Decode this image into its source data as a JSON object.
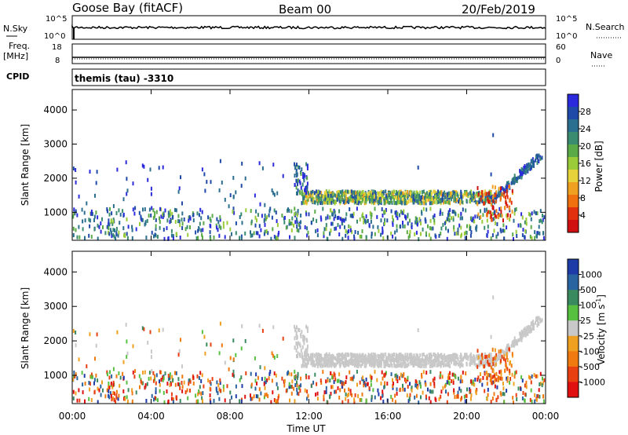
{
  "header": {
    "station": "Goose Bay (fitACF)",
    "beam": "Beam 00",
    "date": "20/Feb/2019"
  },
  "panels": {
    "nsky_label": "N.Sky",
    "nsky_ticks": [
      "10^5",
      "10^0"
    ],
    "nsearch_label": "N.Search",
    "nsearch_ticks": [
      "10^5",
      "10^0"
    ],
    "freq_label_1": "Freq.",
    "freq_label_2": "[MHz]",
    "freq_ticks": [
      "18",
      "8"
    ],
    "nave_label": "Nave",
    "nave_ticks": [
      "60",
      "0"
    ],
    "cpid_label": "CPID",
    "cpid_text": "themis (tau) -3310"
  },
  "chart_data": [
    {
      "type": "heatmap",
      "name": "power",
      "ylabel": "Slant Range [km]",
      "xlabel": "Time UT",
      "x_ticks": [
        "00:00",
        "04:00",
        "08:00",
        "12:00",
        "16:00",
        "20:00",
        "00:00"
      ],
      "x_range_hours": [
        0,
        24
      ],
      "y_ticks": [
        1000,
        2000,
        3000,
        4000
      ],
      "ylim": [
        180,
        4600
      ],
      "colorbar": {
        "label": "Power [dB]",
        "ticks": [
          "28",
          "24",
          "20",
          "16",
          "12",
          "8",
          "4"
        ],
        "colors": [
          "#2b2bdd",
          "#1f4aa8",
          "#2a6e90",
          "#3a8c70",
          "#5aaa48",
          "#9acc3a",
          "#e6d23a",
          "#f0a020",
          "#f07010",
          "#e03010",
          "#d01010"
        ]
      },
      "features": [
        {
          "desc": "ionospheric backscatter band",
          "t_start": 11.5,
          "t_end": 21.3,
          "range_km": [
            1250,
            1600
          ]
        },
        {
          "desc": "rising band",
          "t_start": 21.2,
          "t_end": 23.8,
          "range_km": [
            1300,
            2800
          ]
        },
        {
          "desc": "near-range ground scatter",
          "t_start": 0,
          "t_end": 24,
          "range_km": [
            200,
            1100
          ]
        }
      ]
    },
    {
      "type": "heatmap",
      "name": "velocity",
      "ylabel": "Slant Range [km]",
      "xlabel": "Time UT",
      "x_ticks": [
        "00:00",
        "04:00",
        "08:00",
        "12:00",
        "16:00",
        "20:00",
        "00:00"
      ],
      "x_range_hours": [
        0,
        24
      ],
      "y_ticks": [
        1000,
        2000,
        3000,
        4000
      ],
      "ylim": [
        180,
        4600
      ],
      "colorbar": {
        "label": "Velocity [m s",
        "label_sup": "-1",
        "label_end": "]",
        "ticks": [
          "1000",
          "500",
          "100",
          "25",
          "-25",
          "-100",
          "-500",
          "-1000"
        ],
        "colors": [
          "#1e3ca8",
          "#2a64a0",
          "#3a8a60",
          "#58c040",
          "#c8c8c8",
          "#f0a020",
          "#f07a10",
          "#e84010",
          "#e01010"
        ]
      }
    }
  ]
}
